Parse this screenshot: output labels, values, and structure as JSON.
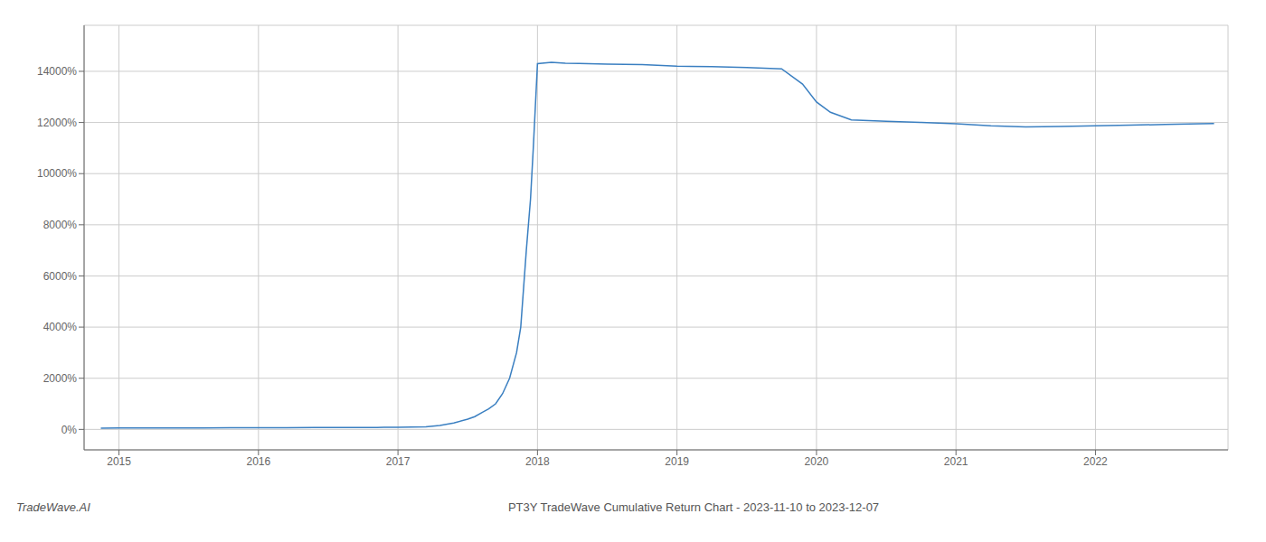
{
  "chart_data": {
    "type": "line",
    "title": "PT3Y TradeWave Cumulative Return Chart - 2023-11-10 to 2023-12-07",
    "annotations": [
      "TradeWave.AI"
    ],
    "x": [
      2014.87,
      2015.0,
      2015.2,
      2015.4,
      2015.6,
      2015.8,
      2016.0,
      2016.2,
      2016.4,
      2016.6,
      2016.8,
      2016.85,
      2016.9,
      2016.95,
      2017.0,
      2017.1,
      2017.2,
      2017.3,
      2017.4,
      2017.5,
      2017.55,
      2017.6,
      2017.65,
      2017.7,
      2017.75,
      2017.8,
      2017.85,
      2017.88,
      2017.9,
      2017.92,
      2017.95,
      2017.97,
      2018.0,
      2018.1,
      2018.2,
      2018.3,
      2018.5,
      2018.75,
      2019.0,
      2019.25,
      2019.5,
      2019.75,
      2019.9,
      2020.0,
      2020.1,
      2020.25,
      2020.5,
      2020.75,
      2021.0,
      2021.25,
      2021.5,
      2021.75,
      2022.0,
      2022.25,
      2022.5,
      2022.75,
      2022.85
    ],
    "values": [
      50,
      55,
      55,
      58,
      60,
      62,
      65,
      68,
      70,
      72,
      75,
      78,
      80,
      82,
      85,
      90,
      100,
      150,
      250,
      400,
      500,
      650,
      800,
      1000,
      1400,
      2000,
      3000,
      4000,
      5500,
      7000,
      9000,
      11000,
      14300,
      14350,
      14320,
      14310,
      14280,
      14260,
      14200,
      14180,
      14150,
      14100,
      13500,
      12800,
      12400,
      12100,
      12050,
      12000,
      11950,
      11870,
      11830,
      11840,
      11870,
      11900,
      11920,
      11950,
      11960
    ],
    "color": "#3a7fc1",
    "xlim": [
      2014.75,
      2022.95
    ],
    "ylim": [
      -800,
      15800
    ],
    "xticks": [
      2015,
      2016,
      2017,
      2018,
      2019,
      2020,
      2021,
      2022
    ],
    "yticks": [
      {
        "value": 0,
        "label": "0%"
      },
      {
        "value": 2000,
        "label": "2000%"
      },
      {
        "value": 4000,
        "label": "4000%"
      },
      {
        "value": 6000,
        "label": "6000%"
      },
      {
        "value": 8000,
        "label": "8000%"
      },
      {
        "value": 10000,
        "label": "10000%"
      },
      {
        "value": 12000,
        "label": "12000%"
      },
      {
        "value": 14000,
        "label": "14000%"
      }
    ],
    "grid": true
  }
}
